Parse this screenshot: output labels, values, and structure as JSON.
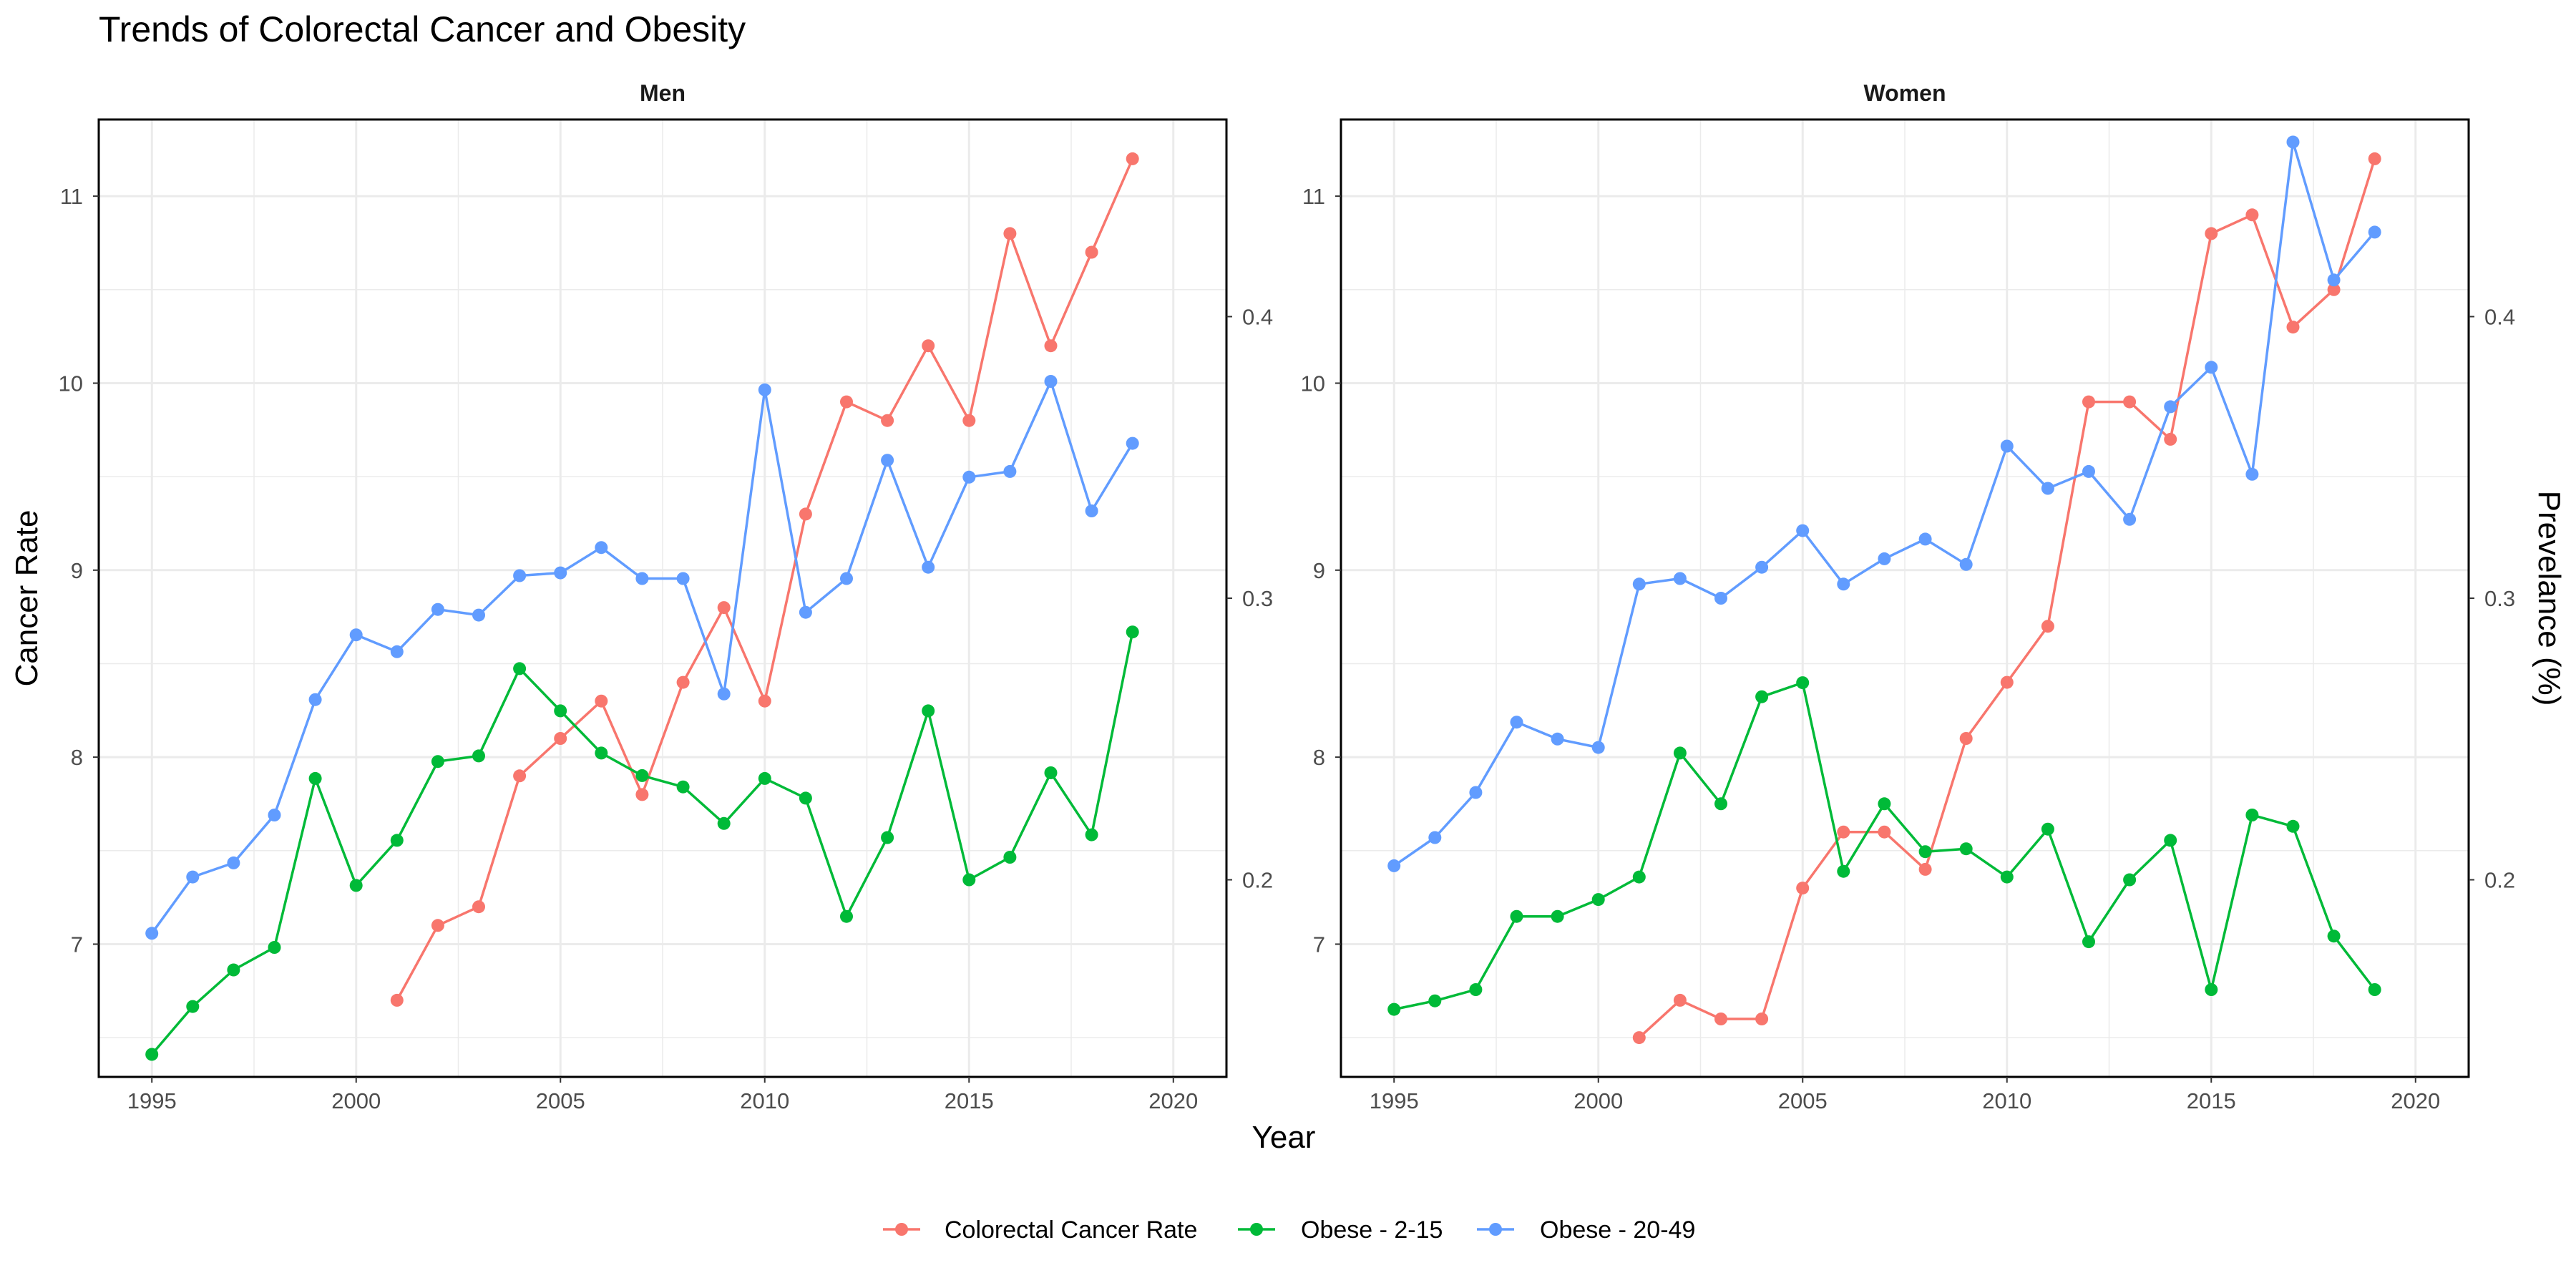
{
  "chart_data": {
    "type": "line",
    "title": "Trends of Colorectal Cancer and Obesity",
    "xlabel": "Year",
    "ylabel": "Cancer Rate",
    "ylabel_right": "Prevelance (%)",
    "xlim": [
      1993.7,
      2021.3
    ],
    "ylim": [
      6.29,
      11.41
    ],
    "ylim_right": [
      0.13,
      0.47
    ],
    "x_ticks": [
      1995,
      2000,
      2005,
      2010,
      2015,
      2020
    ],
    "y_ticks": [
      7,
      8,
      9,
      10,
      11
    ],
    "y_ticks_right": [
      0.2,
      0.3,
      0.4
    ],
    "y_tick_labels_right": [
      "0.2",
      "0.3",
      "0.4"
    ],
    "grid": true,
    "legend_position": "bottom",
    "colors": {
      "cancer": "#F8766D",
      "obese_2_15": "#00BA38",
      "obese_20_49": "#619CFF",
      "grid": "#EBEBEB",
      "text": "#4D4D4D",
      "border": "#000000"
    },
    "legend": [
      {
        "key": "cancer",
        "label": "Colorectal Cancer Rate"
      },
      {
        "key": "obese_2_15",
        "label": "Obese - 2-15"
      },
      {
        "key": "obese_20_49",
        "label": "Obese - 20-49"
      }
    ],
    "panels": [
      {
        "name": "Men",
        "series": [
          {
            "key": "cancer",
            "name": "Colorectal Cancer Rate",
            "axis": "left",
            "x": [
              2001,
              2002,
              2003,
              2004,
              2005,
              2006,
              2007,
              2008,
              2009,
              2010,
              2011,
              2012,
              2013,
              2014,
              2015,
              2016,
              2017,
              2018,
              2019
            ],
            "values": [
              6.7,
              7.1,
              7.2,
              7.9,
              8.1,
              8.3,
              7.8,
              8.4,
              8.8,
              8.3,
              9.3,
              9.9,
              9.8,
              10.2,
              9.8,
              10.8,
              10.2,
              10.7,
              11.2
            ]
          },
          {
            "key": "obese_2_15",
            "name": "Obese - 2-15",
            "axis": "right",
            "x": [
              1995,
              1996,
              1997,
              1998,
              1999,
              2000,
              2001,
              2002,
              2003,
              2004,
              2005,
              2006,
              2007,
              2008,
              2009,
              2010,
              2011,
              2012,
              2013,
              2014,
              2015,
              2016,
              2017,
              2018,
              2019
            ],
            "values": [
              0.138,
              0.155,
              0.168,
              0.176,
              0.236,
              0.198,
              0.214,
              0.242,
              0.244,
              0.275,
              0.26,
              0.245,
              0.237,
              0.233,
              0.22,
              0.236,
              0.229,
              0.187,
              0.215,
              0.26,
              0.2,
              0.208,
              0.238,
              0.216,
              0.288
            ]
          },
          {
            "key": "obese_20_49",
            "name": "Obese - 20-49",
            "axis": "right",
            "x": [
              1995,
              1996,
              1997,
              1998,
              1999,
              2000,
              2001,
              2002,
              2003,
              2004,
              2005,
              2006,
              2007,
              2008,
              2009,
              2010,
              2011,
              2012,
              2013,
              2014,
              2015,
              2016,
              2017,
              2018,
              2019
            ],
            "values": [
              0.181,
              0.201,
              0.206,
              0.223,
              0.264,
              0.287,
              0.281,
              0.296,
              0.294,
              0.308,
              0.309,
              0.318,
              0.307,
              0.307,
              0.266,
              0.374,
              0.295,
              0.307,
              0.349,
              0.311,
              0.343,
              0.345,
              0.377,
              0.331,
              0.355
            ]
          }
        ]
      },
      {
        "name": "Women",
        "series": [
          {
            "key": "cancer",
            "name": "Colorectal Cancer Rate",
            "axis": "left",
            "x": [
              2001,
              2002,
              2003,
              2004,
              2005,
              2006,
              2007,
              2008,
              2009,
              2010,
              2011,
              2012,
              2013,
              2014,
              2015,
              2016,
              2017,
              2018,
              2019
            ],
            "values": [
              6.5,
              6.7,
              6.6,
              6.6,
              7.3,
              7.6,
              7.6,
              7.4,
              8.1,
              8.4,
              8.7,
              9.9,
              9.9,
              9.7,
              10.8,
              10.9,
              10.3,
              10.5,
              11.2
            ]
          },
          {
            "key": "obese_2_15",
            "name": "Obese - 2-15",
            "axis": "right",
            "x": [
              1995,
              1996,
              1997,
              1998,
              1999,
              2000,
              2001,
              2002,
              2003,
              2004,
              2005,
              2006,
              2007,
              2008,
              2009,
              2010,
              2011,
              2012,
              2013,
              2014,
              2015,
              2016,
              2017,
              2018,
              2019
            ],
            "values": [
              0.154,
              0.157,
              0.161,
              0.187,
              0.187,
              0.193,
              0.201,
              0.245,
              0.227,
              0.265,
              0.27,
              0.203,
              0.227,
              0.21,
              0.211,
              0.201,
              0.218,
              0.178,
              0.2,
              0.214,
              0.161,
              0.223,
              0.219,
              0.18,
              0.161
            ]
          },
          {
            "key": "obese_20_49",
            "name": "Obese - 20-49",
            "axis": "right",
            "x": [
              1995,
              1996,
              1997,
              1998,
              1999,
              2000,
              2001,
              2002,
              2003,
              2004,
              2005,
              2006,
              2007,
              2008,
              2009,
              2010,
              2011,
              2012,
              2013,
              2014,
              2015,
              2016,
              2017,
              2018,
              2019
            ],
            "values": [
              0.205,
              0.215,
              0.231,
              0.256,
              0.25,
              0.247,
              0.305,
              0.307,
              0.3,
              0.311,
              0.324,
              0.305,
              0.314,
              0.321,
              0.312,
              0.354,
              0.339,
              0.345,
              0.328,
              0.368,
              0.382,
              0.344,
              0.462,
              0.413,
              0.43
            ]
          }
        ]
      }
    ]
  }
}
